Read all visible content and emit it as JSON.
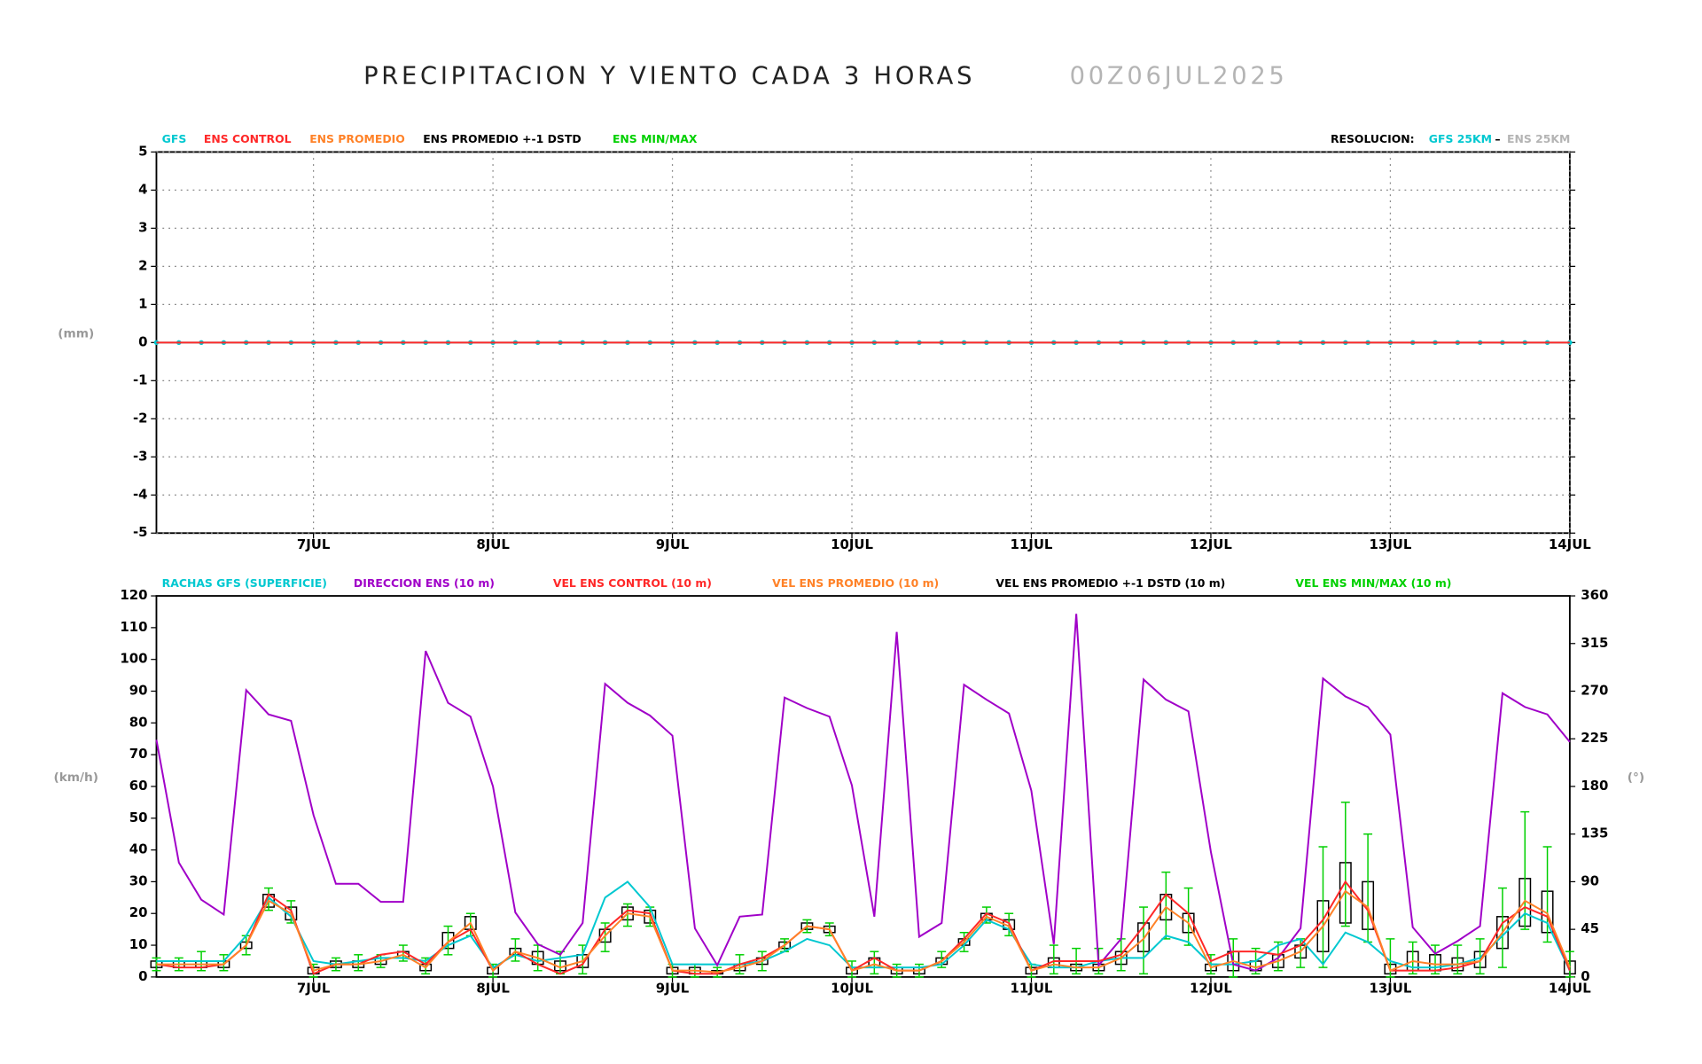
{
  "chart_data": [
    {
      "type": "line",
      "title": "PRECIPITACION Y VIENTO CADA 3 HORAS",
      "subtitle": "00Z06JUL2025",
      "y_label": "(mm)",
      "resolution": {
        "label": "RESOLUCION:",
        "gfs": "GFS 25KM",
        "sep": "–",
        "ens": "ENS 25KM"
      },
      "x": [
        3,
        6,
        9,
        12,
        15,
        18,
        21,
        24,
        27,
        30,
        33,
        36,
        39,
        42,
        45,
        48,
        51,
        54,
        57,
        60,
        63,
        66,
        69,
        72,
        75,
        78,
        81,
        84,
        87,
        90,
        93,
        96,
        99,
        102,
        105,
        108,
        111,
        114,
        117,
        120,
        123,
        126,
        129,
        132,
        135,
        138,
        141,
        144,
        147,
        150,
        153,
        156,
        159,
        162,
        165,
        168,
        171,
        174,
        177,
        180,
        183,
        186,
        189,
        192
      ],
      "xlim": [
        3,
        192
      ],
      "xticks": [
        {
          "value": 24,
          "label": "7JUL"
        },
        {
          "value": 48,
          "label": "8JUL"
        },
        {
          "value": 72,
          "label": "9JUL"
        },
        {
          "value": 96,
          "label": "10JUL"
        },
        {
          "value": 120,
          "label": "11JUL"
        },
        {
          "value": 144,
          "label": "12JUL"
        },
        {
          "value": 168,
          "label": "13JUL"
        },
        {
          "value": 192,
          "label": "14JUL"
        }
      ],
      "ylim": [
        -5,
        5
      ],
      "yticks": [
        -5,
        -4,
        -3,
        -2,
        -1,
        0,
        1,
        2,
        3,
        4,
        5
      ],
      "grid": true,
      "series": [
        {
          "name": "GFS",
          "color": "#00c8d0",
          "markers": true,
          "values": [
            0,
            0,
            0,
            0,
            0,
            0,
            0,
            0,
            0,
            0,
            0,
            0,
            0,
            0,
            0,
            0,
            0,
            0,
            0,
            0,
            0,
            0,
            0,
            0,
            0,
            0,
            0,
            0,
            0,
            0,
            0,
            0,
            0,
            0,
            0,
            0,
            0,
            0,
            0,
            0,
            0,
            0,
            0,
            0,
            0,
            0,
            0,
            0,
            0,
            0,
            0,
            0,
            0,
            0,
            0,
            0,
            0,
            0,
            0,
            0,
            0,
            0,
            0,
            0
          ]
        },
        {
          "name": "ENS CONTROL",
          "color": "#ff2828",
          "values": [
            0,
            0,
            0,
            0,
            0,
            0,
            0,
            0,
            0,
            0,
            0,
            0,
            0,
            0,
            0,
            0,
            0,
            0,
            0,
            0,
            0,
            0,
            0,
            0,
            0,
            0,
            0,
            0,
            0,
            0,
            0,
            0,
            0,
            0,
            0,
            0,
            0,
            0,
            0,
            0,
            0,
            0,
            0,
            0,
            0,
            0,
            0,
            0,
            0,
            0,
            0,
            0,
            0,
            0,
            0,
            0,
            0,
            0,
            0,
            0,
            0,
            0,
            0,
            0
          ]
        },
        {
          "name": "ENS PROMEDIO",
          "color": "#ff8228"
        },
        {
          "name": "ENS PROMEDIO +-1 DSTD",
          "color": "#000000"
        },
        {
          "name": "ENS MIN/MAX",
          "color": "#00d000"
        }
      ]
    },
    {
      "type": "line",
      "y_label": "(km/h)",
      "y2_label": "(°)",
      "x": [
        3,
        6,
        9,
        12,
        15,
        18,
        21,
        24,
        27,
        30,
        33,
        36,
        39,
        42,
        45,
        48,
        51,
        54,
        57,
        60,
        63,
        66,
        69,
        72,
        75,
        78,
        81,
        84,
        87,
        90,
        93,
        96,
        99,
        102,
        105,
        108,
        111,
        114,
        117,
        120,
        123,
        126,
        129,
        132,
        135,
        138,
        141,
        144,
        147,
        150,
        153,
        156,
        159,
        162,
        165,
        168,
        171,
        174,
        177,
        180,
        183,
        186,
        189,
        192
      ],
      "xlim": [
        3,
        192
      ],
      "xticks": [
        {
          "value": 24,
          "label": "7JUL"
        },
        {
          "value": 48,
          "label": "8JUL"
        },
        {
          "value": 72,
          "label": "9JUL"
        },
        {
          "value": 96,
          "label": "10JUL"
        },
        {
          "value": 120,
          "label": "11JUL"
        },
        {
          "value": 144,
          "label": "12JUL"
        },
        {
          "value": 168,
          "label": "13JUL"
        },
        {
          "value": 192,
          "label": "14JUL"
        }
      ],
      "ylim": [
        0,
        120
      ],
      "yticks": [
        0,
        10,
        20,
        30,
        40,
        50,
        60,
        70,
        80,
        90,
        100,
        110,
        120
      ],
      "y2lim": [
        0,
        360
      ],
      "y2ticks": [
        0,
        45,
        90,
        135,
        180,
        225,
        270,
        315,
        360
      ],
      "grid": false,
      "series": [
        {
          "name": "RACHAS GFS (SUPERFICIE)",
          "color": "#00c8d0",
          "values": [
            5,
            5,
            5,
            5,
            13,
            25,
            19,
            5,
            4,
            5,
            6,
            6,
            5,
            10,
            13,
            3,
            7,
            5,
            6,
            7,
            25,
            30,
            22,
            4,
            4,
            4,
            4,
            5,
            8,
            12,
            10,
            3,
            3,
            3,
            3,
            4,
            10,
            18,
            15,
            4,
            3,
            3,
            5,
            6,
            6,
            13,
            11,
            4,
            4,
            5,
            10,
            12,
            4,
            14,
            11,
            5,
            3,
            3,
            4,
            6,
            13,
            20,
            17,
            2
          ]
        },
        {
          "name": "DIRECCION ENS (10 m)",
          "color": "#a000c8",
          "axis": "y2",
          "values": [
            224,
            108,
            73,
            59,
            271,
            248,
            242,
            153,
            88,
            88,
            71,
            71,
            308,
            259,
            246,
            180,
            61,
            31,
            21,
            51,
            277,
            259,
            247,
            228,
            46,
            11,
            57,
            59,
            264,
            254,
            246,
            181,
            57,
            326,
            38,
            51,
            276,
            262,
            249,
            176,
            31,
            343,
            11,
            36,
            281,
            262,
            251,
            118,
            12,
            6,
            18,
            46,
            282,
            265,
            255,
            229,
            47,
            22,
            34,
            48,
            268,
            255,
            248,
            222
          ]
        },
        {
          "name": "VEL ENS CONTROL (10 m)",
          "color": "#ff2828",
          "values": [
            4,
            3,
            3,
            4,
            10,
            26,
            21,
            1,
            4,
            4,
            7,
            8,
            4,
            11,
            15,
            2,
            8,
            4,
            1,
            4,
            15,
            21,
            20,
            2,
            1,
            1,
            4,
            6,
            10,
            16,
            15,
            2,
            6,
            2,
            2,
            5,
            12,
            20,
            17,
            2,
            5,
            5,
            5,
            7,
            16,
            26,
            20,
            5,
            8,
            8,
            7,
            10,
            18,
            30,
            21,
            2,
            2,
            2,
            3,
            5,
            17,
            22,
            19,
            2
          ]
        },
        {
          "name": "VEL ENS PROMEDIO (10 m)",
          "color": "#ff8228",
          "values": [
            4,
            4,
            4,
            4,
            10,
            24,
            20,
            2,
            4,
            4,
            5,
            7,
            3,
            11,
            17,
            2,
            8,
            6,
            3,
            5,
            13,
            20,
            19,
            2,
            2,
            1.5,
            3,
            5,
            10,
            16,
            15,
            2,
            4,
            2,
            2,
            5,
            11,
            19,
            16,
            2,
            4,
            3,
            3,
            6,
            12,
            22,
            17,
            3,
            5,
            3,
            5,
            8,
            16,
            27,
            22,
            2,
            5,
            4,
            4,
            5,
            14,
            24,
            20,
            3
          ]
        },
        {
          "name": "VEL ENS PROMEDIO +-1 DSTD (10 m)",
          "color": "#000000",
          "kind": "box",
          "low": [
            3,
            3,
            3,
            3,
            9,
            22,
            18,
            1,
            3,
            3,
            4,
            6,
            2,
            9,
            15,
            1,
            7,
            4,
            2,
            3,
            11,
            18,
            17,
            1,
            1,
            1,
            2,
            4,
            9,
            15,
            14,
            1,
            3,
            1,
            1,
            4,
            10,
            18,
            15,
            1,
            3,
            2,
            2,
            4,
            8,
            18,
            14,
            2,
            2,
            2,
            3,
            6,
            8,
            17,
            15,
            1,
            2,
            2,
            2,
            3,
            9,
            16,
            14,
            1
          ],
          "high": [
            5,
            5,
            5,
            5,
            11,
            26,
            22,
            3,
            5,
            5,
            6,
            8,
            4,
            14,
            19,
            3,
            9,
            8,
            5,
            7,
            15,
            22,
            21,
            3,
            3,
            2,
            4,
            6,
            11,
            17,
            16,
            3,
            6,
            3,
            3,
            6,
            12,
            20,
            18,
            3,
            6,
            4,
            4,
            8,
            17,
            26,
            20,
            4,
            8,
            5,
            7,
            10,
            24,
            36,
            30,
            4,
            8,
            7,
            6,
            8,
            19,
            31,
            27,
            5
          ]
        },
        {
          "name": "VEL ENS MIN/MAX (10 m)",
          "color": "#00d000",
          "kind": "whisker",
          "low": [
            2,
            2,
            2,
            2,
            7,
            21,
            17,
            0,
            2,
            2,
            3,
            5,
            1,
            7,
            13,
            0,
            5,
            2,
            1,
            1,
            8,
            16,
            16,
            0,
            0,
            0,
            1,
            2,
            8,
            14,
            13,
            0,
            1,
            0,
            0,
            3,
            8,
            17,
            13,
            0,
            1,
            1,
            1,
            2,
            1,
            12,
            10,
            1,
            0,
            1,
            2,
            3,
            3,
            16,
            11,
            0,
            1,
            1,
            1,
            1,
            3,
            15,
            11,
            0
          ],
          "high": [
            6,
            6,
            8,
            7,
            13,
            28,
            24,
            4,
            6,
            7,
            7,
            10,
            6,
            16,
            20,
            4,
            12,
            10,
            8,
            10,
            17,
            23,
            22,
            4,
            4,
            3,
            7,
            8,
            12,
            18,
            17,
            5,
            8,
            4,
            4,
            8,
            14,
            22,
            20,
            4,
            10,
            9,
            9,
            12,
            22,
            33,
            28,
            7,
            12,
            9,
            11,
            12,
            41,
            55,
            45,
            12,
            11,
            10,
            10,
            12,
            28,
            52,
            41,
            8
          ]
        }
      ]
    }
  ]
}
